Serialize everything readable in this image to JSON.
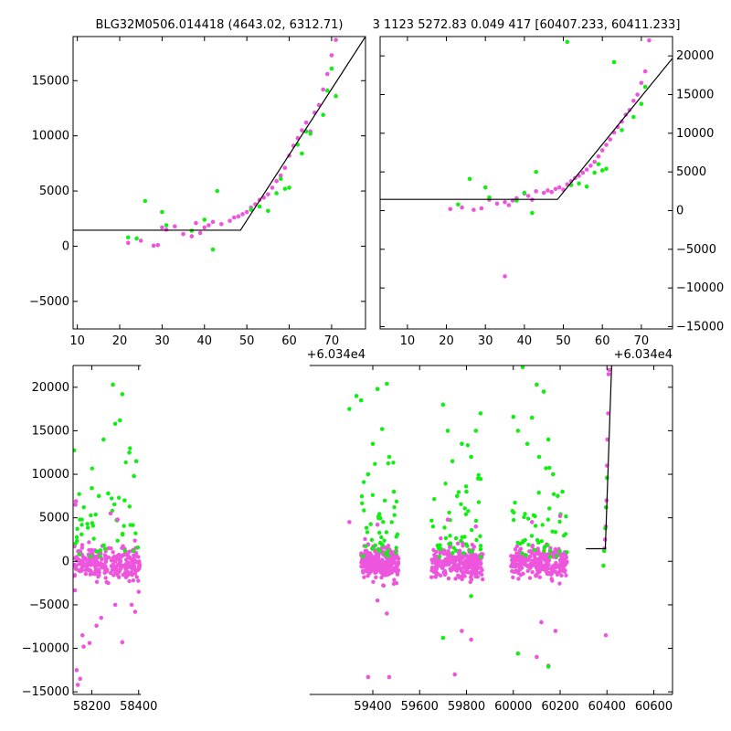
{
  "titles": {
    "left": "BLG32M0506.014418 (4643.02, 6312.71)",
    "right": "3 1123 5272.83 0.049 417 [60407.233, 60411.233]"
  },
  "colors": {
    "series_a": "#ee55dd",
    "series_b": "#11ee11",
    "model": "#000000"
  },
  "chart_data": [
    {
      "id": "zoom-left",
      "type": "scatter",
      "x_offset_label": "+6.034e4",
      "xlim": [
        9,
        78
      ],
      "ylim": [
        -7500,
        19000
      ],
      "xticks": [
        10,
        20,
        30,
        40,
        50,
        60,
        70
      ],
      "yticks": [
        -5000,
        0,
        5000,
        10000,
        15000
      ],
      "y_axis_side": "left",
      "series": [
        {
          "color_key": "series_a",
          "points": [
            [
              22,
              300
            ],
            [
              25,
              500
            ],
            [
              28,
              50
            ],
            [
              29,
              100
            ],
            [
              30,
              1700
            ],
            [
              31,
              1500
            ],
            [
              33,
              1800
            ],
            [
              35,
              1100
            ],
            [
              37,
              900
            ],
            [
              38,
              2100
            ],
            [
              39,
              1200
            ],
            [
              40,
              1700
            ],
            [
              41,
              1900
            ],
            [
              42,
              2200
            ],
            [
              44,
              2000
            ],
            [
              46,
              2300
            ],
            [
              47,
              2600
            ],
            [
              48,
              2700
            ],
            [
              49,
              2900
            ],
            [
              50,
              3100
            ],
            [
              51,
              3500
            ],
            [
              52,
              3800
            ],
            [
              53,
              4200
            ],
            [
              54,
              4400
            ],
            [
              55,
              4700
            ],
            [
              56,
              5300
            ],
            [
              57,
              5900
            ],
            [
              58,
              6400
            ],
            [
              59,
              7100
            ],
            [
              60,
              8200
            ],
            [
              61,
              9100
            ],
            [
              62,
              9800
            ],
            [
              63,
              10500
            ],
            [
              64,
              11200
            ],
            [
              65,
              10400
            ],
            [
              66,
              12100
            ],
            [
              67,
              12800
            ],
            [
              68,
              14200
            ],
            [
              69,
              15600
            ],
            [
              70,
              17300
            ],
            [
              71,
              18700
            ]
          ]
        },
        {
          "color_key": "series_b",
          "points": [
            [
              22,
              800
            ],
            [
              24,
              700
            ],
            [
              26,
              4100
            ],
            [
              30,
              3100
            ],
            [
              31,
              1900
            ],
            [
              37,
              1400
            ],
            [
              40,
              2400
            ],
            [
              42,
              -300
            ],
            [
              43,
              5000
            ],
            [
              51,
              3300
            ],
            [
              53,
              3600
            ],
            [
              55,
              3200
            ],
            [
              57,
              4800
            ],
            [
              58,
              6100
            ],
            [
              59,
              5200
            ],
            [
              60,
              5300
            ],
            [
              62,
              9200
            ],
            [
              63,
              8400
            ],
            [
              64,
              10400
            ],
            [
              65,
              10200
            ],
            [
              68,
              11900
            ],
            [
              69,
              14100
            ],
            [
              70,
              16100
            ],
            [
              71,
              13600
            ]
          ]
        }
      ],
      "model": [
        [
          9,
          1450
        ],
        [
          48.5,
          1450
        ],
        [
          78,
          19000
        ]
      ]
    },
    {
      "id": "zoom-right",
      "type": "scatter",
      "x_offset_label": "+6.034e4",
      "xlim": [
        3,
        78
      ],
      "ylim": [
        -15300,
        22500
      ],
      "xticks": [
        10,
        20,
        30,
        40,
        50,
        60,
        70
      ],
      "yticks": [
        -15000,
        -10000,
        -5000,
        0,
        5000,
        10000,
        15000,
        20000
      ],
      "y_axis_side": "right",
      "series": [
        {
          "color_key": "series_a",
          "points": [
            [
              21,
              200
            ],
            [
              24,
              400
            ],
            [
              27,
              100
            ],
            [
              29,
              300
            ],
            [
              31,
              1400
            ],
            [
              33,
              900
            ],
            [
              35,
              1100
            ],
            [
              36,
              700
            ],
            [
              37,
              1300
            ],
            [
              38,
              1600
            ],
            [
              40,
              2200
            ],
            [
              41,
              1900
            ],
            [
              42,
              1400
            ],
            [
              43,
              2500
            ],
            [
              45,
              2300
            ],
            [
              46,
              2600
            ],
            [
              47,
              2400
            ],
            [
              48,
              2800
            ],
            [
              49,
              3000
            ],
            [
              50,
              2700
            ],
            [
              51,
              3400
            ],
            [
              52,
              3800
            ],
            [
              53,
              4200
            ],
            [
              54,
              4500
            ],
            [
              55,
              4900
            ],
            [
              56,
              5300
            ],
            [
              57,
              5800
            ],
            [
              58,
              6300
            ],
            [
              59,
              7000
            ],
            [
              60,
              7800
            ],
            [
              61,
              8500
            ],
            [
              62,
              9200
            ],
            [
              63,
              10100
            ],
            [
              64,
              10800
            ],
            [
              65,
              11500
            ],
            [
              66,
              12400
            ],
            [
              67,
              13000
            ],
            [
              68,
              14200
            ],
            [
              69,
              15000
            ],
            [
              70,
              16500
            ],
            [
              71,
              18000
            ],
            [
              72,
              22000
            ],
            [
              35,
              -8500
            ]
          ]
        },
        {
          "color_key": "series_b",
          "points": [
            [
              23,
              800
            ],
            [
              26,
              4100
            ],
            [
              30,
              3000
            ],
            [
              31,
              1700
            ],
            [
              38,
              1300
            ],
            [
              40,
              2300
            ],
            [
              42,
              -300
            ],
            [
              43,
              5000
            ],
            [
              51,
              21800
            ],
            [
              52,
              3300
            ],
            [
              54,
              3500
            ],
            [
              56,
              3100
            ],
            [
              58,
              4900
            ],
            [
              59,
              6000
            ],
            [
              60,
              5200
            ],
            [
              61,
              5400
            ],
            [
              63,
              19200
            ],
            [
              65,
              10400
            ],
            [
              68,
              12100
            ],
            [
              70,
              13800
            ],
            [
              71,
              16000
            ]
          ]
        }
      ],
      "model": [
        [
          3,
          1450
        ],
        [
          48.5,
          1450
        ],
        [
          78,
          19700
        ]
      ]
    },
    {
      "id": "full-lightcurve",
      "type": "scatter",
      "xlim": [
        58120,
        60680
      ],
      "ylim": [
        -15300,
        22500
      ],
      "xticks": [
        58200,
        58400,
        59400,
        59600,
        59800,
        60000,
        60200,
        60400,
        60600
      ],
      "yticks": [
        -15000,
        -10000,
        -5000,
        0,
        5000,
        10000,
        15000,
        20000
      ],
      "axis_gap_x": [
        58410,
        59130
      ],
      "y_axis_side": "left",
      "seasons": [
        {
          "start": 58125,
          "end": 58405,
          "sparse_hi": 1
        },
        {
          "start": 59350,
          "end": 59510,
          "sparse_hi": 1
        },
        {
          "start": 59650,
          "end": 59870,
          "sparse_hi": 1
        },
        {
          "start": 59990,
          "end": 60230,
          "sparse_hi": 1
        }
      ],
      "series": [
        {
          "color_key": "series_a",
          "points": [
            [
              58130,
              6500
            ],
            [
              58132,
              6900
            ],
            [
              58135,
              -12500
            ],
            [
              58140,
              -14200
            ],
            [
              58150,
              -13500
            ],
            [
              58160,
              -8500
            ],
            [
              58165,
              -9800
            ],
            [
              58190,
              -9400
            ],
            [
              58220,
              -7400
            ],
            [
              58240,
              -6500
            ],
            [
              58300,
              -5000
            ],
            [
              58330,
              -9300
            ],
            [
              58370,
              -5000
            ],
            [
              58385,
              -5800
            ],
            [
              58400,
              -3500
            ],
            [
              59380,
              -13300
            ],
            [
              59470,
              -13300
            ],
            [
              59460,
              -6000
            ],
            [
              59420,
              -4500
            ],
            [
              59750,
              -13000
            ],
            [
              59780,
              -8000
            ],
            [
              59820,
              -9000
            ],
            [
              60100,
              -11000
            ],
            [
              60150,
              -12000
            ],
            [
              60180,
              -8000
            ],
            [
              60120,
              -7000
            ],
            [
              60395,
              -8500
            ],
            [
              60390,
              1500
            ],
            [
              60392,
              2500
            ],
            [
              60395,
              4000
            ],
            [
              60398,
              7000
            ],
            [
              60400,
              11000
            ],
            [
              60402,
              14000
            ],
            [
              60405,
              17000
            ],
            [
              60407,
              21500
            ],
            [
              60409,
              22000
            ],
            [
              58280,
              5500
            ],
            [
              58310,
              4800
            ],
            [
              59300,
              4500
            ],
            [
              59420,
              4200
            ],
            [
              59720,
              4800
            ],
            [
              59840,
              4000
            ],
            [
              60080,
              4500
            ],
            [
              60200,
              5200
            ]
          ]
        },
        {
          "color_key": "series_b",
          "points": [
            [
              58200,
              8400
            ],
            [
              58230,
              7500
            ],
            [
              58250,
              14000
            ],
            [
              58270,
              7800
            ],
            [
              58290,
              20300
            ],
            [
              58300,
              15800
            ],
            [
              58320,
              16200
            ],
            [
              58330,
              19200
            ],
            [
              58340,
              7000
            ],
            [
              58360,
              12500
            ],
            [
              58380,
              9800
            ],
            [
              58390,
              11500
            ],
            [
              59300,
              17500
            ],
            [
              59330,
              19000
            ],
            [
              59350,
              18500
            ],
            [
              59380,
              10000
            ],
            [
              59400,
              13500
            ],
            [
              59420,
              19800
            ],
            [
              59440,
              15200
            ],
            [
              59460,
              20400
            ],
            [
              59470,
              12000
            ],
            [
              59490,
              8000
            ],
            [
              59700,
              18000
            ],
            [
              59720,
              15000
            ],
            [
              59740,
              11500
            ],
            [
              59760,
              7500
            ],
            [
              59780,
              13500
            ],
            [
              59800,
              8000
            ],
            [
              59820,
              12000
            ],
            [
              59840,
              15000
            ],
            [
              59850,
              9500
            ],
            [
              59860,
              17000
            ],
            [
              59700,
              -8800
            ],
            [
              59820,
              -4000
            ],
            [
              60000,
              16600
            ],
            [
              60020,
              15000
            ],
            [
              60040,
              22300
            ],
            [
              60060,
              13500
            ],
            [
              60080,
              16500
            ],
            [
              60100,
              20300
            ],
            [
              60110,
              12000
            ],
            [
              60130,
              19500
            ],
            [
              60150,
              14000
            ],
            [
              60170,
              10000
            ],
            [
              60190,
              7500
            ],
            [
              60210,
              8000
            ],
            [
              60020,
              -10600
            ],
            [
              60150,
              -12100
            ],
            [
              60385,
              -500
            ],
            [
              60388,
              1200
            ],
            [
              60393,
              3800
            ],
            [
              60396,
              6200
            ],
            [
              60400,
              9600
            ]
          ]
        }
      ],
      "model": [
        [
          60310,
          1450
        ],
        [
          60393,
          1450
        ],
        [
          60420,
          22500
        ]
      ]
    }
  ]
}
